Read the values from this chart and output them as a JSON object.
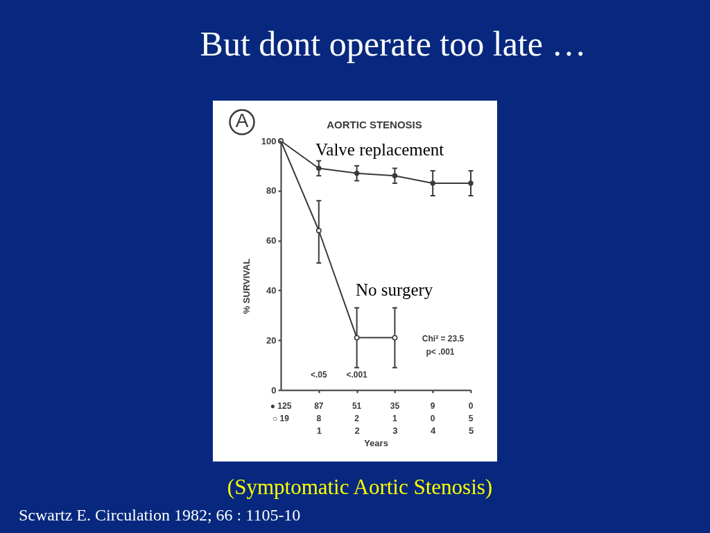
{
  "chart_data": {
    "type": "line",
    "title": "But dont operate too late …",
    "subtitle": "AORTIC STENOSIS",
    "xlabel": "Years",
    "ylabel": "% SURVIVAL",
    "x": [
      0,
      1,
      2,
      3,
      4,
      5
    ],
    "series": [
      {
        "name": "Valve replacement",
        "color": "#3a3a3a",
        "values": [
          100,
          89,
          87,
          86,
          83,
          83
        ],
        "errors": [
          null,
          3,
          3,
          3,
          5,
          5
        ]
      },
      {
        "name": "No surgery",
        "color": "#3a3a3a",
        "values": [
          100,
          64,
          21,
          21,
          null,
          null
        ],
        "errors": [
          null,
          [
            51,
            76
          ],
          [
            9,
            33
          ],
          [
            9,
            33
          ],
          null,
          null
        ]
      }
    ],
    "xlim": [
      0,
      5
    ],
    "ylim": [
      0,
      100
    ],
    "xticks": [
      1,
      2,
      3,
      4,
      5
    ],
    "yticks": [
      0,
      20,
      40,
      60,
      80,
      100
    ],
    "marker": "circle",
    "annotations": [
      "A",
      "Chi² = 23.5",
      "p< .001",
      "<.05",
      "<.001",
      "● 125",
      "87",
      "51",
      "35",
      "9",
      "0",
      "○ 19",
      "8",
      "2",
      "1",
      "0",
      "5",
      "(Symptomatic Aortic Stenosis)",
      "Scwartz E. Circulation 1982; 66 : 1105-10"
    ]
  }
}
